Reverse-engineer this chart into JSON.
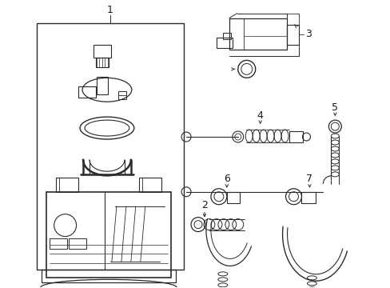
{
  "bg_color": "#ffffff",
  "line_color": "#2a2a2a",
  "text_color": "#1a1a1a",
  "label_fontsize": 9,
  "fig_width": 4.89,
  "fig_height": 3.6,
  "dpi": 100
}
